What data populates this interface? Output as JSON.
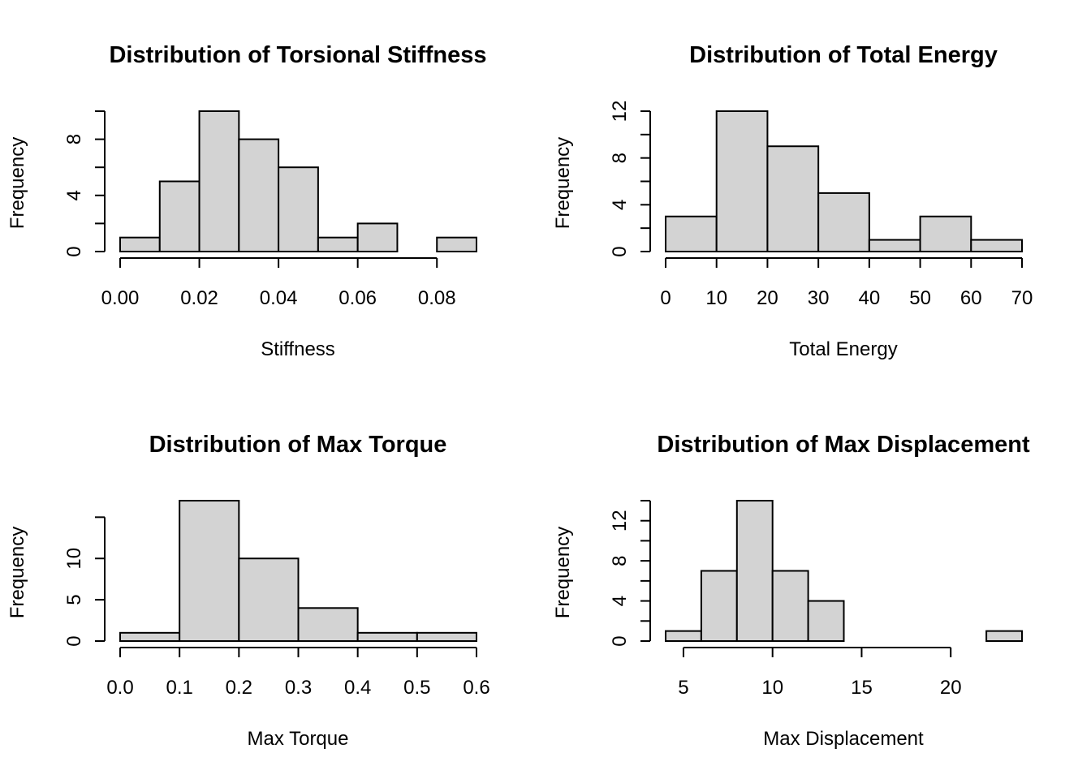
{
  "chart_data": [
    {
      "type": "bar",
      "title": "Distribution of Torsional Stiffness",
      "xlabel": "Stiffness",
      "ylabel": "Frequency",
      "breaks": [
        0.0,
        0.01,
        0.02,
        0.03,
        0.04,
        0.05,
        0.06,
        0.07,
        0.08,
        0.09
      ],
      "values": [
        1,
        5,
        10,
        8,
        6,
        1,
        2,
        0,
        1
      ],
      "xlim": [
        0.0,
        0.09
      ],
      "ylim": [
        0,
        10
      ],
      "x_ticks": [
        0.0,
        0.02,
        0.04,
        0.06,
        0.08
      ],
      "x_tick_labels": [
        "0.00",
        "0.02",
        "0.04",
        "0.06",
        "0.08"
      ],
      "y_ticks": [
        0,
        2,
        4,
        6,
        8,
        10
      ],
      "y_tick_labels": [
        "0",
        "",
        "4",
        "",
        "8",
        ""
      ]
    },
    {
      "type": "bar",
      "title": "Distribution of Total Energy",
      "xlabel": "Total Energy",
      "ylabel": "Frequency",
      "breaks": [
        0,
        10,
        20,
        30,
        40,
        50,
        60,
        70
      ],
      "values": [
        3,
        12,
        9,
        5,
        1,
        3,
        1
      ],
      "xlim": [
        0,
        70
      ],
      "ylim": [
        0,
        12
      ],
      "x_ticks": [
        0,
        10,
        20,
        30,
        40,
        50,
        60,
        70
      ],
      "x_tick_labels": [
        "0",
        "10",
        "20",
        "30",
        "40",
        "50",
        "60",
        "70"
      ],
      "y_ticks": [
        0,
        2,
        4,
        6,
        8,
        10,
        12
      ],
      "y_tick_labels": [
        "0",
        "",
        "4",
        "",
        "8",
        "",
        "12"
      ]
    },
    {
      "type": "bar",
      "title": "Distribution of Max Torque",
      "xlabel": "Max Torque",
      "ylabel": "Frequency",
      "breaks": [
        0.0,
        0.1,
        0.2,
        0.3,
        0.4,
        0.5,
        0.6
      ],
      "values": [
        1,
        17,
        10,
        4,
        1,
        1
      ],
      "xlim": [
        0.0,
        0.6
      ],
      "ylim": [
        0,
        17
      ],
      "x_ticks": [
        0.0,
        0.1,
        0.2,
        0.3,
        0.4,
        0.5,
        0.6
      ],
      "x_tick_labels": [
        "0.0",
        "0.1",
        "0.2",
        "0.3",
        "0.4",
        "0.5",
        "0.6"
      ],
      "y_ticks": [
        0,
        5,
        10,
        15
      ],
      "y_tick_labels": [
        "0",
        "5",
        "10",
        ""
      ]
    },
    {
      "type": "bar",
      "title": "Distribution of Max Displacement",
      "xlabel": "Max Displacement",
      "ylabel": "Frequency",
      "breaks": [
        4,
        6,
        8,
        10,
        12,
        14,
        16,
        18,
        20,
        22,
        24
      ],
      "values": [
        1,
        7,
        14,
        7,
        4,
        0,
        0,
        0,
        0,
        1
      ],
      "xlim": [
        4,
        24
      ],
      "ylim": [
        0,
        14
      ],
      "x_ticks": [
        5,
        10,
        15,
        20
      ],
      "x_tick_labels": [
        "5",
        "10",
        "15",
        "20"
      ],
      "y_ticks": [
        0,
        2,
        4,
        6,
        8,
        10,
        12,
        14
      ],
      "y_tick_labels": [
        "0",
        "",
        "4",
        "",
        "8",
        "",
        "12",
        ""
      ]
    }
  ]
}
